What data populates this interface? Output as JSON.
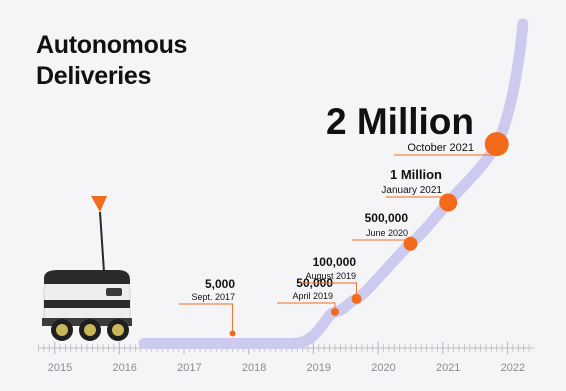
{
  "title_line1": "Autonomous",
  "title_line2": "Deliveries",
  "colors": {
    "background": "#f5f5f7",
    "curve": "#cdcaf0",
    "marker": "#f26b1d",
    "leader": "#f26b1d",
    "text": "#111111",
    "axis": "#bdbdc4",
    "tick_label": "#8b8b95"
  },
  "chart_data": {
    "type": "line",
    "title": "Autonomous Deliveries",
    "xlabel": "",
    "ylabel": "",
    "x_tick_labels": [
      "2015",
      "2016",
      "2017",
      "2018",
      "2019",
      "2020",
      "2021",
      "2022"
    ],
    "xlim": [
      "2014-09",
      "2022-05"
    ],
    "milestones": [
      {
        "date": "2017-09",
        "value": 5000,
        "value_label": "5,000",
        "date_label": "Sept. 2017"
      },
      {
        "date": "2019-04",
        "value": 50000,
        "value_label": "50,000",
        "date_label": "April 2019"
      },
      {
        "date": "2019-08",
        "value": 100000,
        "value_label": "100,000",
        "date_label": "August 2019"
      },
      {
        "date": "2020-06",
        "value": 500000,
        "value_label": "500,000",
        "date_label": "June 2020"
      },
      {
        "date": "2021-01",
        "value": 1000000,
        "value_label": "1 Million",
        "date_label": "January 2021"
      },
      {
        "date": "2021-10",
        "value": 2000000,
        "value_label": "2 Million",
        "date_label": "October 2021"
      }
    ]
  },
  "robot": {
    "icon": "delivery-robot-icon"
  }
}
